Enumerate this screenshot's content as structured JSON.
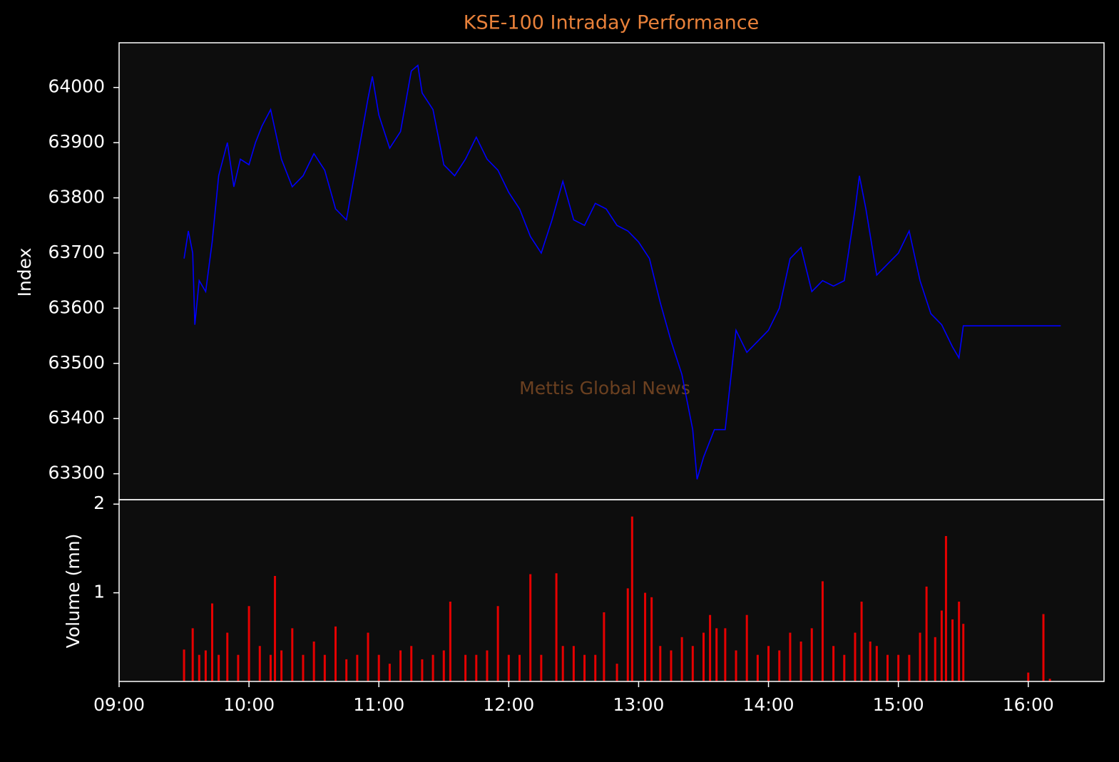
{
  "chart_data": [
    {
      "type": "line",
      "title": "KSE-100 Intraday Performance",
      "y_label": "Index",
      "annotation": "Mettis Global News",
      "color": "#0000ff",
      "x": [
        "09:30",
        "09:32",
        "09:34",
        "09:35",
        "09:37",
        "09:40",
        "09:43",
        "09:46",
        "09:50",
        "09:53",
        "09:56",
        "10:00",
        "10:03",
        "10:06",
        "10:10",
        "10:15",
        "10:20",
        "10:25",
        "10:30",
        "10:35",
        "10:40",
        "10:45",
        "10:50",
        "10:55",
        "10:57",
        "11:00",
        "11:05",
        "11:10",
        "11:15",
        "11:18",
        "11:20",
        "11:25",
        "11:30",
        "11:35",
        "11:40",
        "11:45",
        "11:50",
        "11:55",
        "12:00",
        "12:05",
        "12:10",
        "12:15",
        "12:20",
        "12:25",
        "12:30",
        "12:35",
        "12:40",
        "12:45",
        "12:50",
        "12:55",
        "13:00",
        "13:05",
        "13:10",
        "13:15",
        "13:20",
        "13:25",
        "13:27",
        "13:30",
        "13:35",
        "13:40",
        "13:45",
        "13:50",
        "13:55",
        "14:00",
        "14:05",
        "14:10",
        "14:15",
        "14:20",
        "14:25",
        "14:30",
        "14:35",
        "14:40",
        "14:42",
        "14:45",
        "14:50",
        "14:55",
        "15:00",
        "15:05",
        "15:10",
        "15:15",
        "15:20",
        "15:25",
        "15:28",
        "15:30",
        "16:15"
      ],
      "values": [
        63690,
        63740,
        63700,
        63570,
        63650,
        63630,
        63720,
        63840,
        63900,
        63820,
        63870,
        63860,
        63900,
        63930,
        63960,
        63870,
        63820,
        63840,
        63880,
        63850,
        63780,
        63760,
        63870,
        63980,
        64020,
        63950,
        63890,
        63920,
        64030,
        64040,
        63990,
        63960,
        63860,
        63840,
        63870,
        63910,
        63870,
        63850,
        63810,
        63780,
        63730,
        63700,
        63760,
        63830,
        63760,
        63750,
        63790,
        63780,
        63750,
        63740,
        63720,
        63690,
        63610,
        63540,
        63480,
        63380,
        63290,
        63330,
        63380,
        63380,
        63560,
        63520,
        63540,
        63560,
        63600,
        63690,
        63710,
        63630,
        63650,
        63640,
        63650,
        63780,
        63840,
        63780,
        63660,
        63680,
        63700,
        63740,
        63650,
        63590,
        63570,
        63530,
        63510,
        63568,
        63568
      ],
      "xlim": [
        "09:00",
        "16:35"
      ],
      "ylim": [
        63253,
        64081
      ],
      "yticks": [
        63300,
        63400,
        63500,
        63600,
        63700,
        63800,
        63900,
        64000
      ]
    },
    {
      "type": "bar",
      "y_label": "Volume (mn)",
      "color": "#e60000",
      "x": [
        "09:30",
        "09:34",
        "09:37",
        "09:40",
        "09:43",
        "09:46",
        "09:50",
        "09:55",
        "10:00",
        "10:05",
        "10:10",
        "10:12",
        "10:15",
        "10:20",
        "10:25",
        "10:30",
        "10:35",
        "10:40",
        "10:45",
        "10:50",
        "10:55",
        "11:00",
        "11:05",
        "11:10",
        "11:15",
        "11:20",
        "11:25",
        "11:30",
        "11:33",
        "11:40",
        "11:45",
        "11:50",
        "11:55",
        "12:00",
        "12:05",
        "12:10",
        "12:15",
        "12:22",
        "12:25",
        "12:30",
        "12:35",
        "12:40",
        "12:44",
        "12:50",
        "12:55",
        "12:57",
        "13:03",
        "13:06",
        "13:10",
        "13:15",
        "13:20",
        "13:25",
        "13:30",
        "13:33",
        "13:36",
        "13:40",
        "13:45",
        "13:50",
        "13:55",
        "14:00",
        "14:05",
        "14:10",
        "14:15",
        "14:20",
        "14:25",
        "14:30",
        "14:35",
        "14:40",
        "14:43",
        "14:47",
        "14:50",
        "14:55",
        "15:00",
        "15:05",
        "15:10",
        "15:13",
        "15:17",
        "15:20",
        "15:22",
        "15:25",
        "15:28",
        "15:30",
        "16:00",
        "16:07",
        "16:10"
      ],
      "values": [
        0.36,
        0.6,
        0.3,
        0.35,
        0.88,
        0.3,
        0.55,
        0.3,
        0.85,
        0.4,
        0.3,
        1.19,
        0.35,
        0.6,
        0.3,
        0.45,
        0.3,
        0.62,
        0.25,
        0.3,
        0.55,
        0.3,
        0.2,
        0.35,
        0.4,
        0.25,
        0.3,
        0.35,
        0.9,
        0.3,
        0.3,
        0.35,
        0.85,
        0.3,
        0.3,
        1.21,
        0.3,
        1.22,
        0.4,
        0.4,
        0.3,
        0.3,
        0.78,
        0.2,
        1.05,
        1.86,
        1.0,
        0.95,
        0.4,
        0.35,
        0.5,
        0.4,
        0.55,
        0.75,
        0.6,
        0.6,
        0.35,
        0.75,
        0.3,
        0.4,
        0.35,
        0.55,
        0.45,
        0.6,
        1.13,
        0.4,
        0.3,
        0.55,
        0.9,
        0.45,
        0.4,
        0.3,
        0.3,
        0.3,
        0.55,
        1.07,
        0.5,
        0.8,
        1.64,
        0.7,
        0.9,
        0.65,
        0.1,
        0.76,
        0.03
      ],
      "xlim": [
        "09:00",
        "16:35"
      ],
      "ylim": [
        0,
        2.05
      ],
      "yticks": [
        1,
        2
      ],
      "xticks": [
        "09:00",
        "10:00",
        "11:00",
        "12:00",
        "13:00",
        "14:00",
        "15:00",
        "16:00"
      ]
    }
  ]
}
